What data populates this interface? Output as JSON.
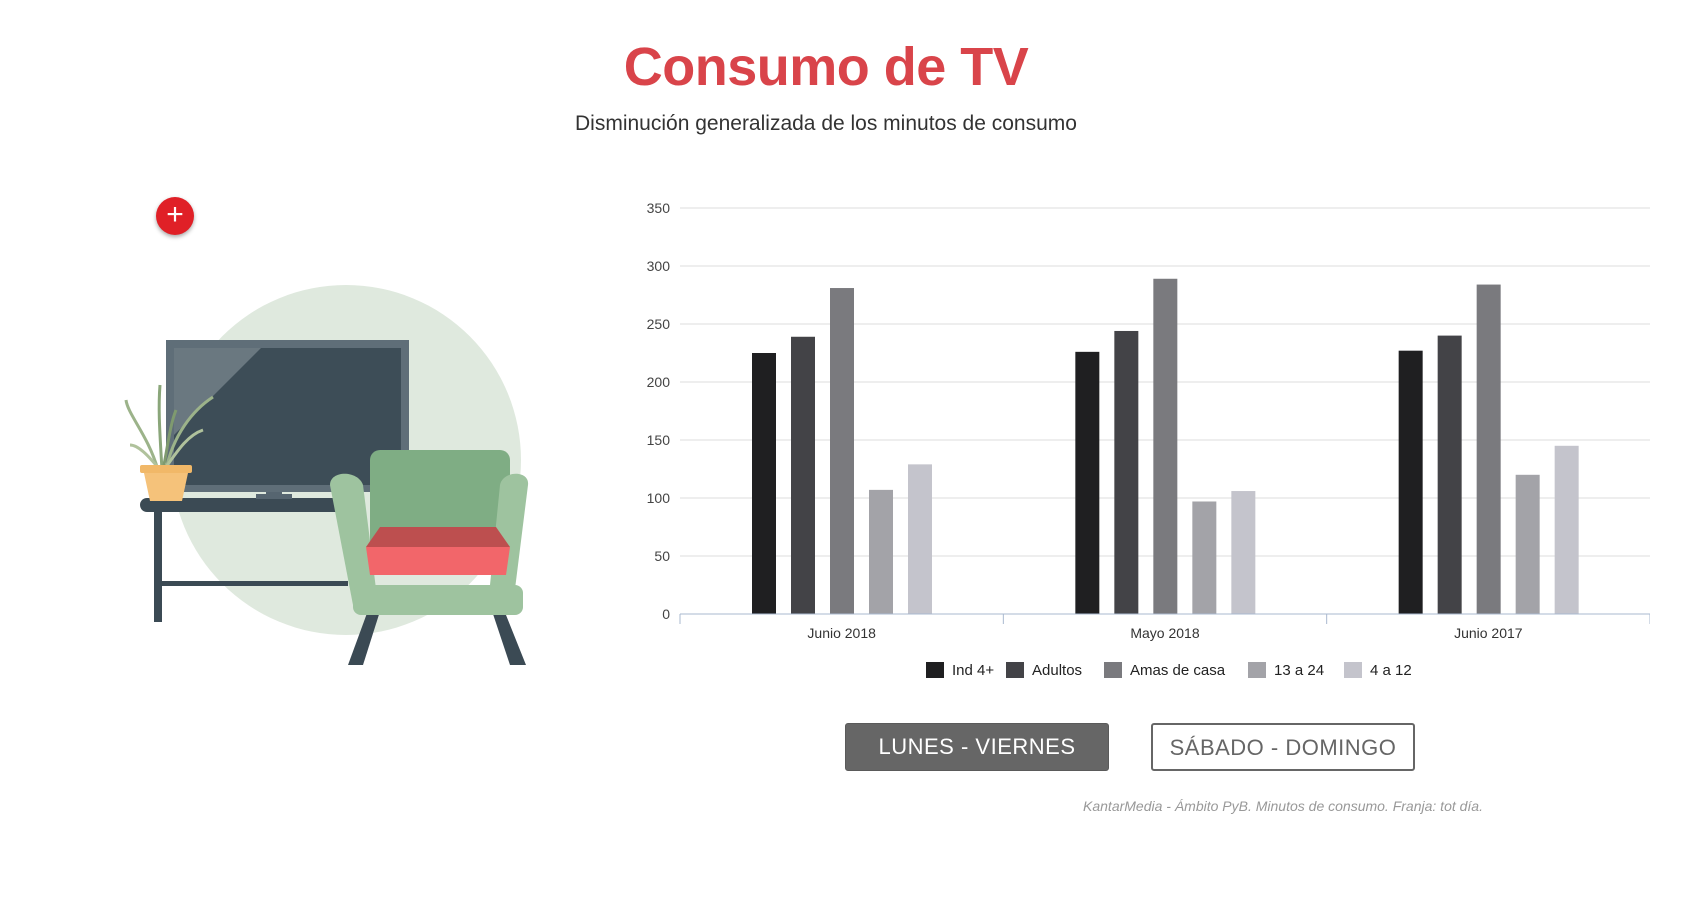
{
  "header": {
    "title": "Consumo de TV",
    "subtitle": "Disminución generalizada de los minutos de consumo"
  },
  "expand_button": {
    "label": "+"
  },
  "illustration": {
    "icon": "tv-living-room-illustration"
  },
  "chart_data": {
    "type": "bar",
    "categories": [
      "Junio 2018",
      "Mayo 2018",
      "Junio 2017"
    ],
    "series": [
      {
        "name": "Ind 4+",
        "color": "#1f1f21",
        "values": [
          225,
          226,
          227
        ]
      },
      {
        "name": "Adultos",
        "color": "#434347",
        "values": [
          239,
          244,
          240
        ]
      },
      {
        "name": "Amas de casa",
        "color": "#7a7a7e",
        "values": [
          281,
          289,
          284
        ]
      },
      {
        "name": "13 a 24",
        "color": "#a3a3a8",
        "values": [
          107,
          97,
          120
        ]
      },
      {
        "name": "4 a 12",
        "color": "#c4c4cc",
        "values": [
          129,
          106,
          145
        ]
      }
    ],
    "ylim": [
      0,
      350
    ],
    "yticks": [
      0,
      50,
      100,
      150,
      200,
      250,
      300,
      350
    ],
    "grid": true,
    "legend": "bottom"
  },
  "buttons": {
    "weekdays": "LUNES - VIERNES",
    "weekend": "SÁBADO - DOMINGO"
  },
  "footer": {
    "source": "KantarMedia - Ámbito PyB. Minutos de consumo. Franja: tot día."
  }
}
